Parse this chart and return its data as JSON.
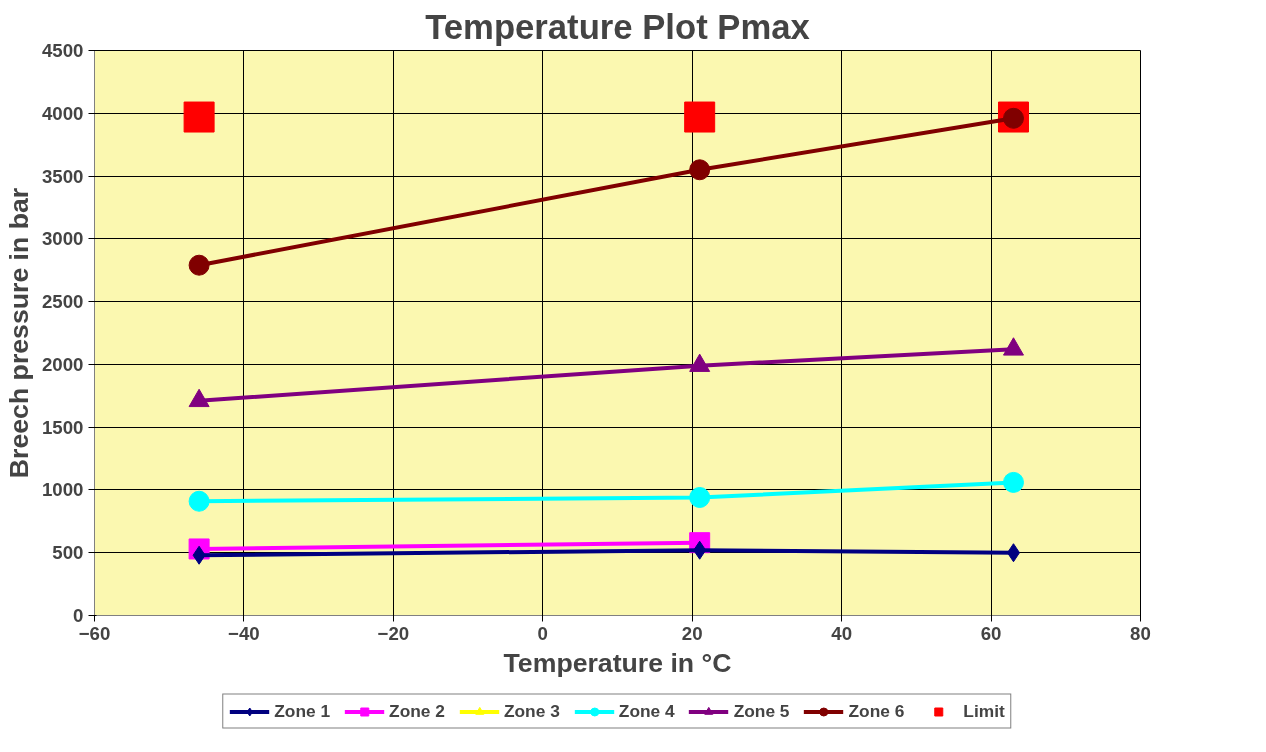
{
  "chart_data": {
    "type": "line",
    "title": "Temperature Plot Pmax",
    "xlabel": "Temperature in °C",
    "ylabel": "Breech pressure in bar",
    "x": [
      -46,
      21,
      63
    ],
    "xlim": [
      -60,
      80
    ],
    "xticks": [
      -60,
      -40,
      -20,
      0,
      20,
      40,
      60,
      80
    ],
    "ylim": [
      0,
      4500
    ],
    "yticks": [
      0,
      500,
      1000,
      1500,
      2000,
      2500,
      3000,
      3500,
      4000,
      4500
    ],
    "grid": true,
    "legend": "bottom",
    "series": [
      {
        "name": "Zone 1",
        "color": "#000080",
        "marker": "diamond",
        "values": [
          480,
          520,
          500
        ]
      },
      {
        "name": "Zone 2",
        "color": "#ff00ff",
        "marker": "square",
        "values": [
          530,
          580,
          null
        ]
      },
      {
        "name": "Zone 3",
        "color": "#ffff00",
        "marker": "triangle",
        "values": [
          null,
          null,
          null
        ]
      },
      {
        "name": "Zone 4",
        "color": "#00ffff",
        "marker": "circle",
        "values": [
          910,
          940,
          1060
        ]
      },
      {
        "name": "Zone 5",
        "color": "#800080",
        "marker": "triangle",
        "values": [
          1710,
          1990,
          2120
        ]
      },
      {
        "name": "Zone 6",
        "color": "#800000",
        "marker": "circle",
        "values": [
          2790,
          3550,
          3960
        ]
      },
      {
        "name": "Limit",
        "color": "#ff0000",
        "type": "scatter",
        "marker": "square",
        "values": [
          3970,
          3970,
          3970
        ]
      }
    ]
  }
}
